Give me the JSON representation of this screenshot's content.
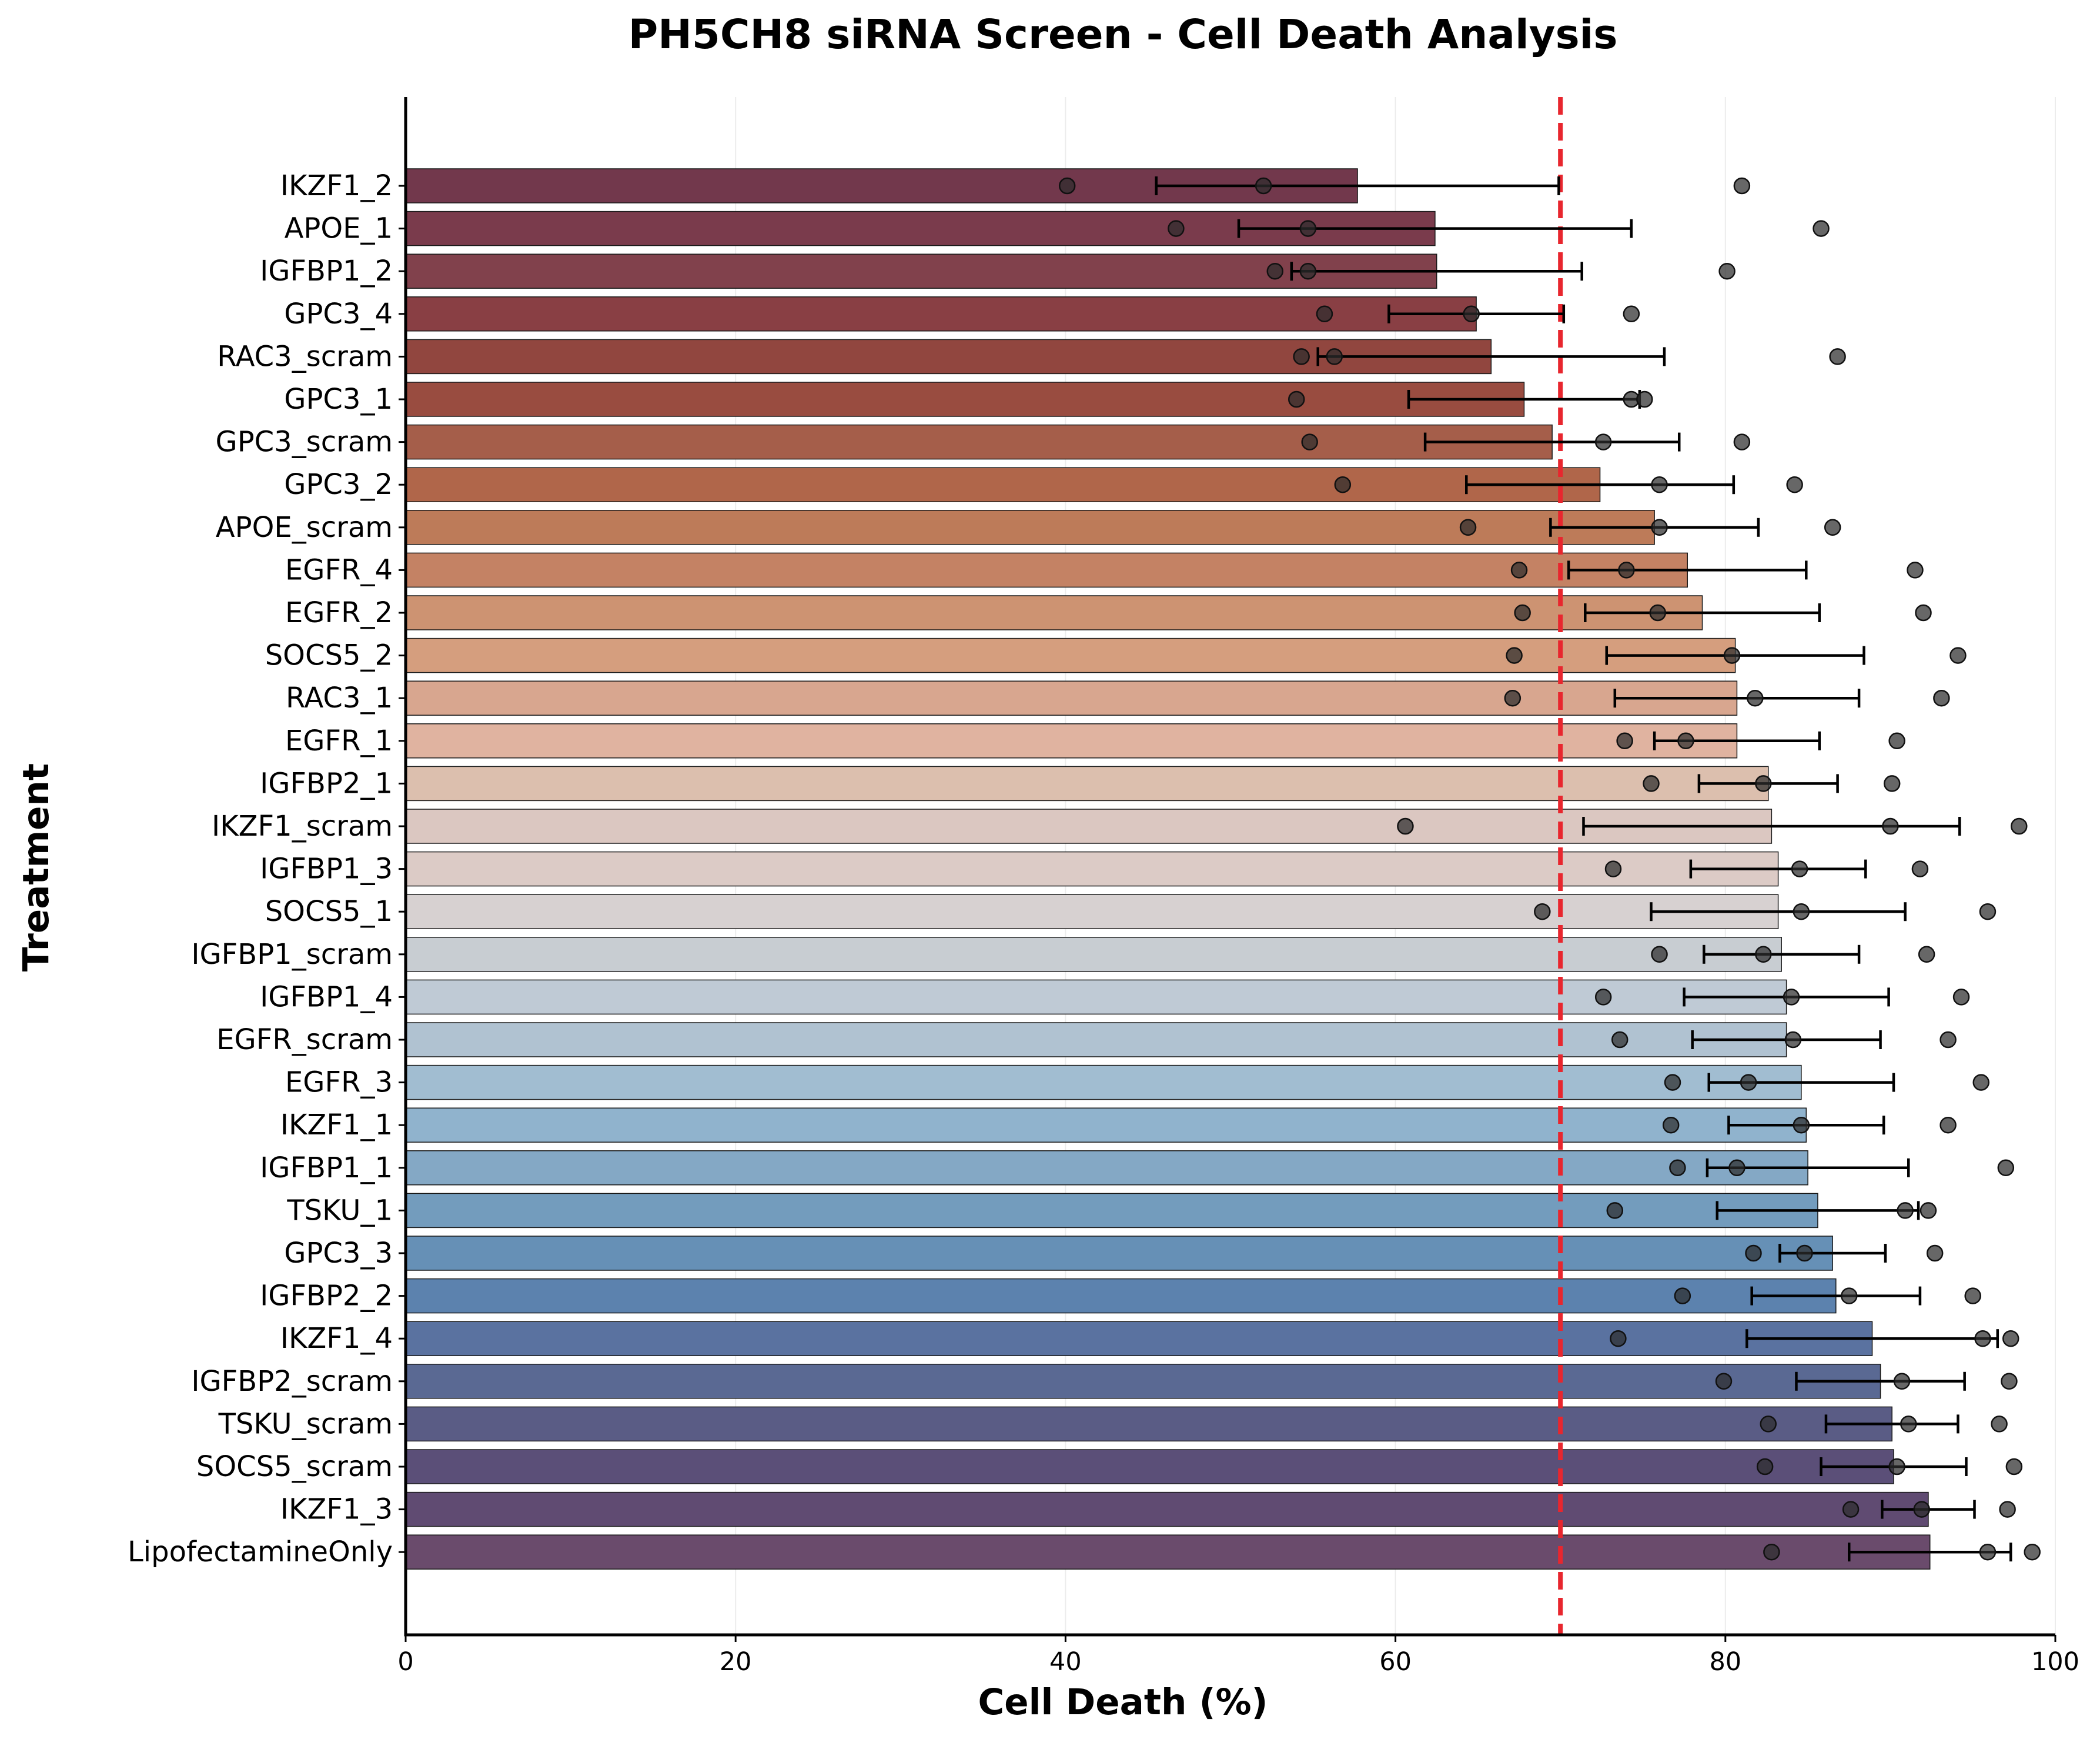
{
  "chart_data": {
    "type": "bar",
    "orientation": "horizontal",
    "title": "PH5CH8 siRNA Screen - Cell Death Analysis",
    "xlabel": "Cell Death (%)",
    "ylabel": "Treatment",
    "xlim": [
      0,
      100
    ],
    "xticks": [
      0,
      20,
      40,
      60,
      80,
      100
    ],
    "grid": "x",
    "threshold": 70,
    "threshold_color": "#e8262e",
    "categories": [
      "IKZF1_2",
      "APOE_1",
      "IGFBP1_2",
      "GPC3_4",
      "RAC3_scram",
      "GPC3_1",
      "GPC3_scram",
      "GPC3_2",
      "APOE_scram",
      "EGFR_4",
      "EGFR_2",
      "SOCS5_2",
      "RAC3_1",
      "EGFR_1",
      "IGFBP2_1",
      "IKZF1_scram",
      "IGFBP1_3",
      "SOCS5_1",
      "IGFBP1_scram",
      "IGFBP1_4",
      "EGFR_scram",
      "EGFR_3",
      "IKZF1_1",
      "IGFBP1_1",
      "TSKU_1",
      "GPC3_3",
      "IGFBP2_2",
      "IKZF1_4",
      "IGFBP2_scram",
      "TSKU_scram",
      "SOCS5_scram",
      "IKZF1_3",
      "LipofectamineOnly"
    ],
    "values": [
      57.7,
      62.4,
      62.5,
      64.9,
      65.8,
      67.8,
      69.5,
      72.4,
      75.7,
      77.7,
      78.6,
      80.6,
      80.7,
      80.7,
      82.6,
      82.8,
      83.2,
      83.2,
      83.4,
      83.7,
      83.7,
      84.6,
      84.9,
      85.0,
      85.6,
      86.5,
      86.7,
      88.9,
      89.4,
      90.1,
      90.2,
      92.3,
      92.4
    ],
    "errors": [
      12.2,
      11.9,
      8.8,
      5.3,
      10.5,
      7.0,
      7.7,
      8.1,
      6.3,
      7.2,
      7.1,
      7.8,
      7.4,
      5.0,
      4.2,
      11.4,
      5.3,
      7.7,
      4.7,
      6.2,
      5.7,
      5.6,
      4.7,
      6.1,
      6.1,
      3.2,
      5.1,
      7.6,
      5.1,
      4.0,
      4.4,
      2.8,
      4.9
    ],
    "points": [
      [
        40.1,
        52.0,
        81.0
      ],
      [
        46.7,
        54.7,
        85.8
      ],
      [
        52.7,
        54.7,
        80.1
      ],
      [
        55.7,
        64.6,
        74.3
      ],
      [
        54.3,
        56.3,
        86.8
      ],
      [
        54.0,
        74.3,
        75.1
      ],
      [
        54.8,
        72.6,
        81.0
      ],
      [
        56.8,
        76.0,
        84.2
      ],
      [
        64.4,
        76.0,
        86.5
      ],
      [
        67.5,
        74.0,
        91.5
      ],
      [
        67.7,
        75.9,
        92.0
      ],
      [
        67.2,
        80.4,
        94.1
      ],
      [
        67.1,
        81.8,
        93.1
      ],
      [
        73.9,
        77.6,
        90.4
      ],
      [
        75.5,
        82.3,
        90.1
      ],
      [
        60.6,
        90.0,
        97.8
      ],
      [
        73.2,
        84.5,
        91.8
      ],
      [
        68.9,
        84.6,
        95.9
      ],
      [
        76.0,
        82.3,
        92.2
      ],
      [
        72.6,
        84.0,
        94.3
      ],
      [
        73.6,
        84.1,
        93.5
      ],
      [
        76.8,
        81.4,
        95.5
      ],
      [
        76.7,
        84.6,
        93.5
      ],
      [
        77.1,
        80.7,
        97.0
      ],
      [
        73.3,
        90.9,
        92.3
      ],
      [
        81.7,
        84.8,
        92.7
      ],
      [
        77.4,
        87.5,
        95.0
      ],
      [
        73.5,
        95.6,
        97.3
      ],
      [
        79.9,
        90.7,
        97.2
      ],
      [
        82.6,
        91.1,
        96.6
      ],
      [
        82.4,
        90.4,
        97.5
      ],
      [
        87.6,
        91.9,
        97.1
      ],
      [
        82.8,
        95.9,
        98.6
      ]
    ],
    "bar_colors": [
      "#72384c",
      "#7a3b4c",
      "#81414c",
      "#893f44",
      "#91463f",
      "#994c40",
      "#a55e4a",
      "#b0664a",
      "#bd7b59",
      "#c48264",
      "#cd9372",
      "#d59e7e",
      "#d8a68f",
      "#e0b3a0",
      "#dcbfae",
      "#dbc7c1",
      "#dccbc6",
      "#d7d1d1",
      "#c8cdd2",
      "#bfcad5",
      "#b0c2d1",
      "#a1bdd1",
      "#90b3cd",
      "#84a8c5",
      "#739cbd",
      "#6690b6",
      "#5c82ae",
      "#5a72a0",
      "#5a6993",
      "#5a5c85",
      "#5b4f78",
      "#604b72",
      "#6a4b6c"
    ]
  }
}
